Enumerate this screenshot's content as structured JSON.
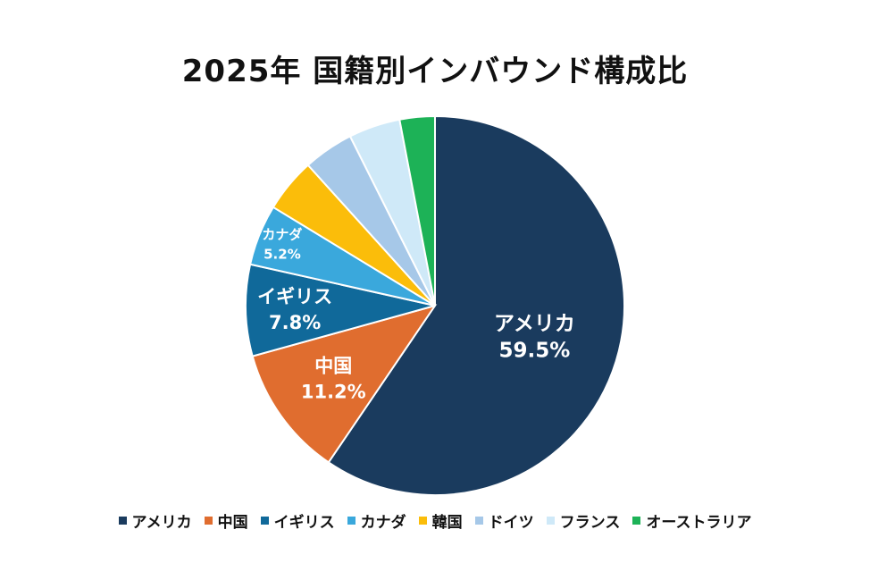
{
  "chart_data": {
    "type": "pie",
    "title": "2025年 国籍別インバウンド構成比",
    "start": "top, clockwise",
    "slices": [
      {
        "name": "アメリカ",
        "value": 59.5,
        "color": "#1a3b5e",
        "label": "アメリカ",
        "value_label": "59.5%"
      },
      {
        "name": "中国",
        "value": 11.2,
        "color": "#e06d2f",
        "label": "中国",
        "value_label": "11.2%"
      },
      {
        "name": "イギリス",
        "value": 7.8,
        "color": "#10699a",
        "label": "イギリス",
        "value_label": "7.8%"
      },
      {
        "name": "カナダ",
        "value": 5.2,
        "color": "#3aa8dc",
        "label": "カナダ",
        "value_label": "5.2%"
      },
      {
        "name": "韓国",
        "value": 4.6,
        "color": "#fbbd0a",
        "label": "",
        "value_label": ""
      },
      {
        "name": "ドイツ",
        "value": 4.3,
        "color": "#a6c8e8",
        "label": "",
        "value_label": ""
      },
      {
        "name": "フランス",
        "value": 4.4,
        "color": "#cfe9f8",
        "label": "",
        "value_label": ""
      },
      {
        "name": "オーストラリア",
        "value": 3.0,
        "color": "#1db257",
        "label": "",
        "value_label": ""
      }
    ],
    "legend": {
      "placement": "bottom",
      "entries": [
        "アメリカ",
        "中国",
        "イギリス",
        "カナダ",
        "韓国",
        "ドイツ",
        "フランス",
        "オーストラリア"
      ]
    }
  }
}
